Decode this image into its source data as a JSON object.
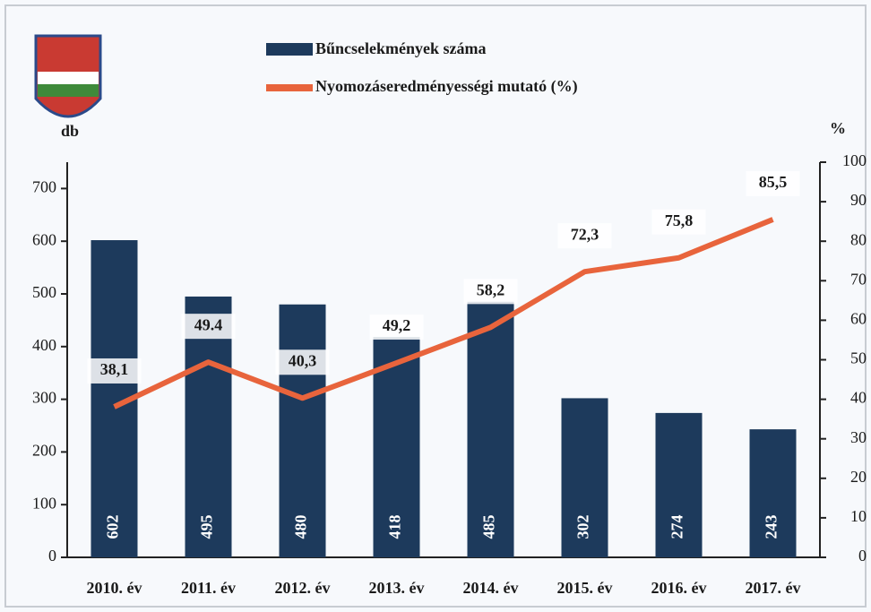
{
  "chart_data": {
    "type": "bar-line",
    "y_label": "db",
    "y2_label": "%",
    "categories": [
      "2010. év",
      "2011. év",
      "2012. év",
      "2013. év",
      "2014. év",
      "2015. év",
      "2016. év",
      "2017. év"
    ],
    "series": [
      {
        "name": "Bűncselekmények száma",
        "color": "#1d3a5c",
        "type": "bar",
        "values": [
          602,
          495,
          480,
          418,
          485,
          302,
          274,
          243
        ]
      },
      {
        "name": "Nyomozáseredményességi mutató (%)",
        "color": "#e8643c",
        "type": "line",
        "axis": "y2",
        "values": [
          38.1,
          49.4,
          40.3,
          49.2,
          58.2,
          72.3,
          75.8,
          85.5
        ],
        "value_labels": [
          "38,1",
          "49.4",
          "40,3",
          "49,2",
          "58,2",
          "72,3",
          "75,8",
          "85,5"
        ]
      }
    ],
    "ylim": [
      0,
      750
    ],
    "yticks": [
      0,
      100,
      200,
      300,
      400,
      500,
      600,
      700
    ],
    "y2lim": [
      0,
      100
    ],
    "y2ticks": [
      0,
      10,
      20,
      30,
      40,
      50,
      60,
      70,
      80,
      90,
      100
    ]
  }
}
